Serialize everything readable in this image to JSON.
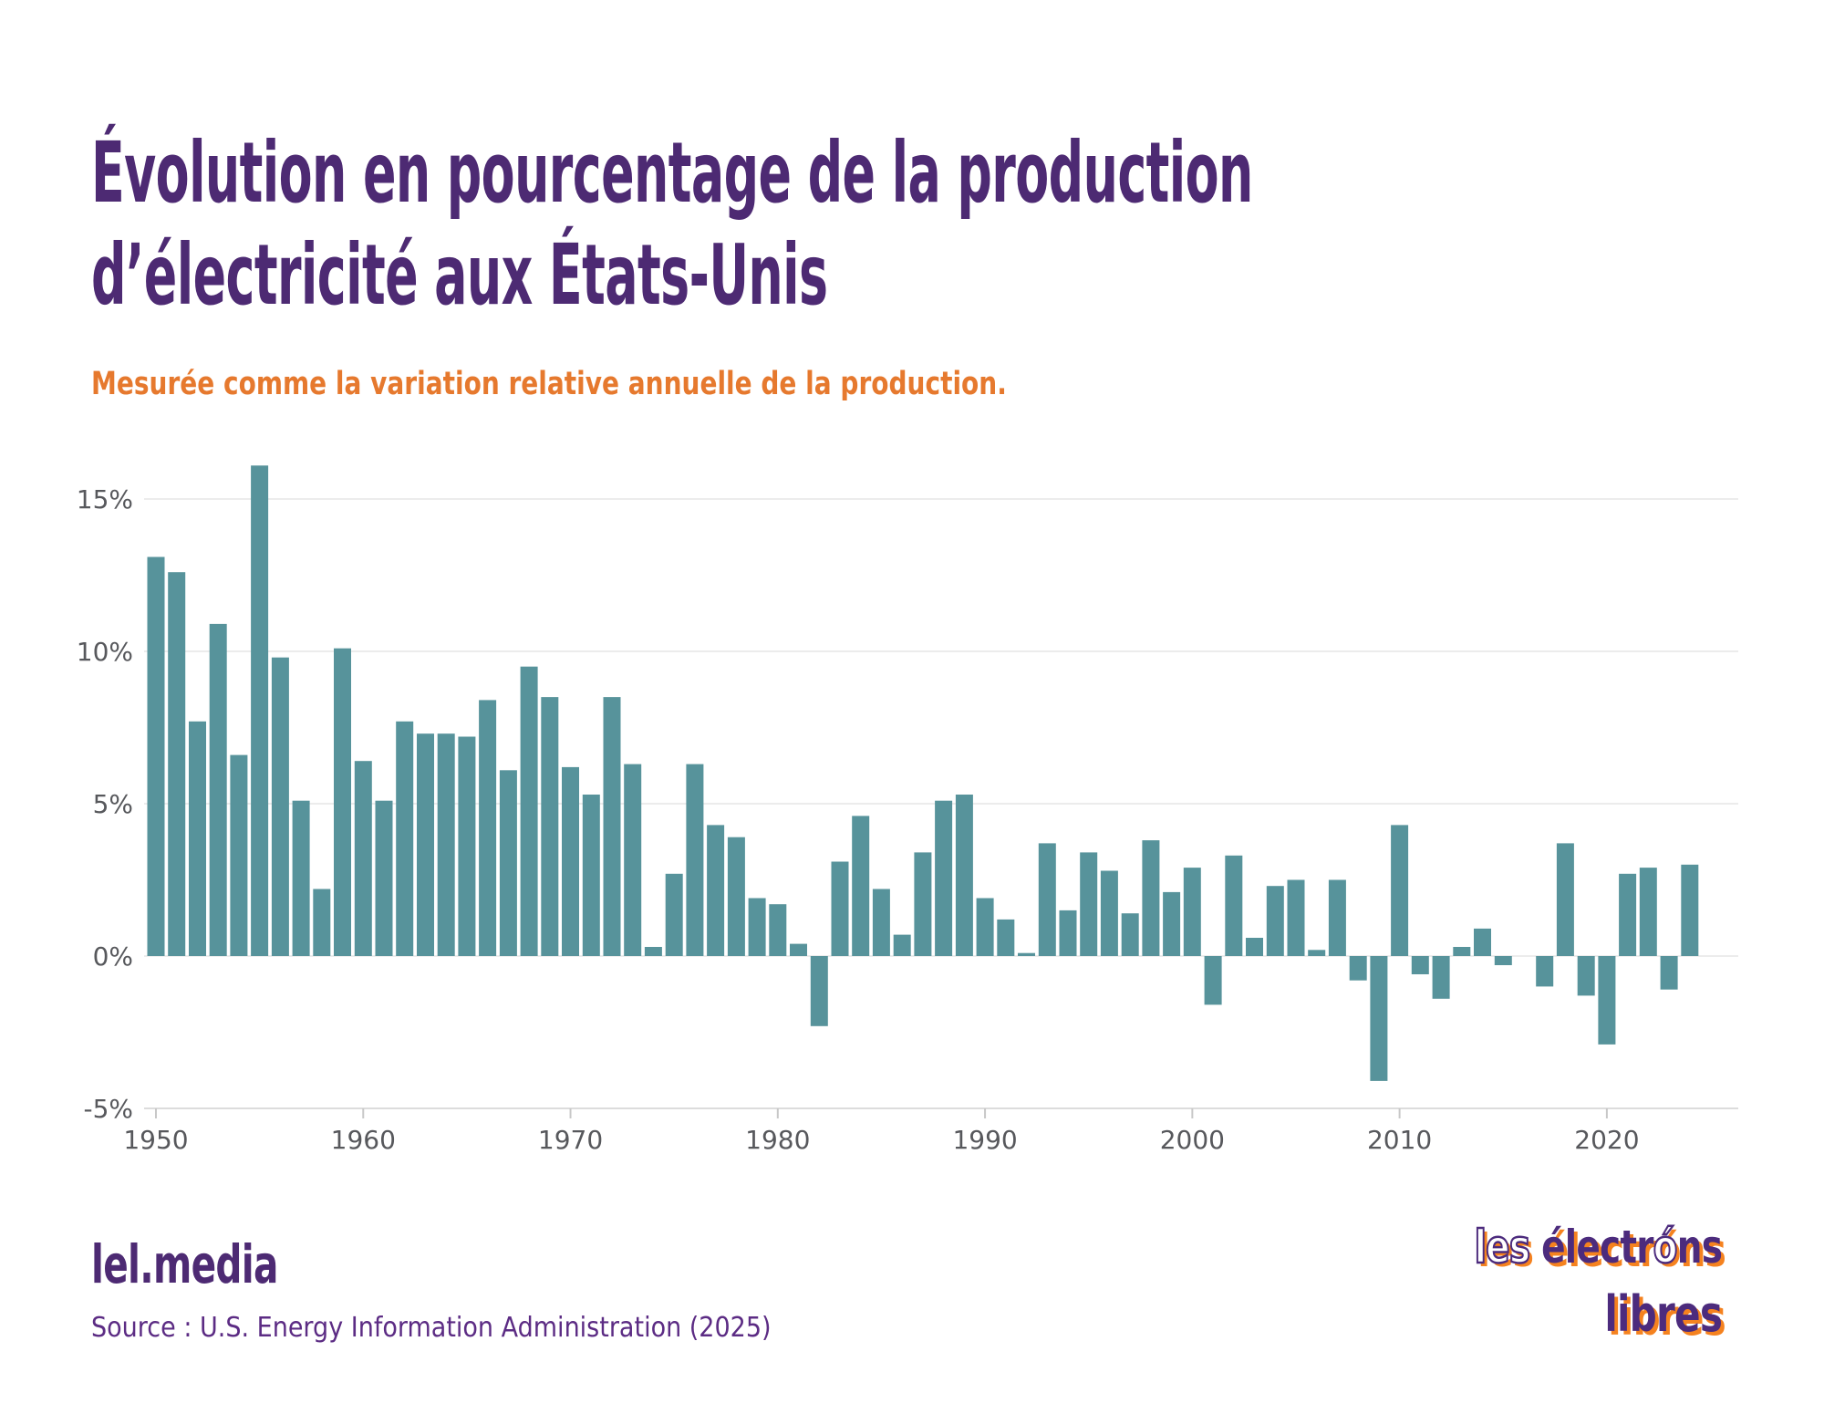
{
  "title": {
    "line1": "Évolution en pourcentage de la production",
    "line2": "d’électricité aux États-Unis"
  },
  "subtitle": "Mesurée comme la variation relative annuelle de la production.",
  "footer": {
    "brand": "lel.media",
    "source": "Source : U.S. Energy Information Administration (2025)"
  },
  "logo": {
    "word1": "les",
    "word2_part1": "électr",
    "word2_o": "ó",
    "word2_part2": "ns",
    "word3": "libres"
  },
  "colors": {
    "bar": "#57939B",
    "title": "#4D2A73",
    "subtitle": "#E6792E",
    "source": "#5C2C84",
    "gridline": "#ECECEC",
    "axis_line": "#DCDCDC",
    "tick": "#C8C8C8",
    "axis_text": "#57585C",
    "logo_purple": "#4C2B7D",
    "logo_orange": "#F5821F"
  },
  "chart_data": {
    "type": "bar",
    "title": "Évolution en pourcentage de la production d’électricité aux États-Unis",
    "subtitle": "Mesurée comme la variation relative annuelle de la production.",
    "xlabel": "",
    "ylabel": "",
    "unit": "%",
    "ylim": [
      -5,
      16.5
    ],
    "grid": "horizontal",
    "legend": "none",
    "bar_color": "#57939B",
    "x": [
      1950,
      1951,
      1952,
      1953,
      1954,
      1955,
      1956,
      1957,
      1958,
      1959,
      1960,
      1961,
      1962,
      1963,
      1964,
      1965,
      1966,
      1967,
      1968,
      1969,
      1970,
      1971,
      1972,
      1973,
      1974,
      1975,
      1976,
      1977,
      1978,
      1979,
      1980,
      1981,
      1982,
      1983,
      1984,
      1985,
      1986,
      1987,
      1988,
      1989,
      1990,
      1991,
      1992,
      1993,
      1994,
      1995,
      1996,
      1997,
      1998,
      1999,
      2000,
      2001,
      2002,
      2003,
      2004,
      2005,
      2006,
      2007,
      2008,
      2009,
      2010,
      2011,
      2012,
      2013,
      2014,
      2015,
      2016,
      2017,
      2018,
      2019,
      2020,
      2021,
      2022,
      2023,
      2024
    ],
    "values": [
      13.1,
      12.6,
      7.7,
      10.9,
      6.6,
      16.1,
      9.8,
      5.1,
      2.2,
      10.1,
      6.4,
      5.1,
      7.7,
      7.3,
      7.3,
      7.2,
      8.4,
      6.1,
      9.5,
      8.5,
      6.2,
      5.3,
      8.5,
      6.3,
      0.3,
      2.7,
      6.3,
      4.3,
      3.9,
      1.9,
      1.7,
      0.4,
      -2.3,
      3.1,
      4.6,
      2.2,
      0.7,
      3.4,
      5.1,
      5.3,
      1.9,
      1.2,
      0.1,
      3.7,
      1.5,
      3.4,
      2.8,
      1.4,
      3.8,
      2.1,
      2.9,
      -1.6,
      3.3,
      0.6,
      2.3,
      2.5,
      0.2,
      2.5,
      -0.8,
      -4.1,
      4.3,
      -0.6,
      -1.4,
      0.3,
      0.9,
      -0.3,
      0.0,
      -1.0,
      3.7,
      -1.3,
      -2.9,
      2.7,
      2.9,
      -1.1,
      3.0
    ],
    "y_ticks": [
      {
        "value": 15,
        "label": "15%"
      },
      {
        "value": 10,
        "label": "10%"
      },
      {
        "value": 5,
        "label": "5%"
      },
      {
        "value": 0,
        "label": "0%"
      },
      {
        "value": -5,
        "label": "-5%"
      }
    ],
    "x_ticks": [
      {
        "year": 1950,
        "label": "1950"
      },
      {
        "year": 1960,
        "label": "1960"
      },
      {
        "year": 1970,
        "label": "1970"
      },
      {
        "year": 1980,
        "label": "1980"
      },
      {
        "year": 1990,
        "label": "1990"
      },
      {
        "year": 2000,
        "label": "2000"
      },
      {
        "year": 2010,
        "label": "2010"
      },
      {
        "year": 2020,
        "label": "2020"
      }
    ]
  }
}
